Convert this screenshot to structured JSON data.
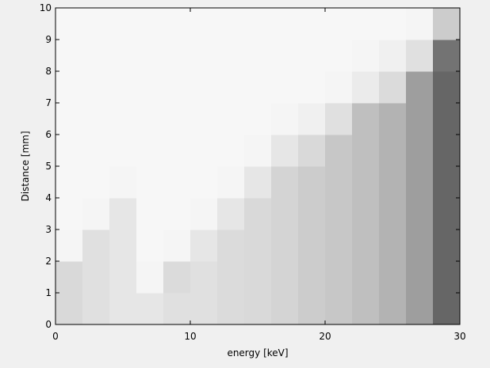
{
  "chart_data": {
    "type": "heatmap",
    "xlabel": "energy [keV]",
    "ylabel": "Distance [mm]",
    "xlim": [
      0,
      30
    ],
    "ylim": [
      0,
      10
    ],
    "xticks": [
      0,
      10,
      20,
      30
    ],
    "yticks": [
      0,
      1,
      2,
      3,
      4,
      5,
      6,
      7,
      8,
      9,
      10
    ],
    "xbins": [
      0,
      2,
      4,
      6,
      8,
      10,
      12,
      14,
      16,
      18,
      20,
      22,
      24,
      26,
      28,
      30
    ],
    "ybins": [
      0,
      1,
      2,
      3,
      4,
      5,
      6,
      7,
      8,
      9,
      10
    ],
    "clim": [
      0,
      1
    ],
    "colormap": "inverted-gray",
    "z": [
      [
        0.15,
        0.12,
        0.1,
        0.1,
        0.12,
        0.12,
        0.14,
        0.15,
        0.17,
        0.2,
        0.22,
        0.25,
        0.3,
        0.38,
        0.6
      ],
      [
        0.15,
        0.12,
        0.1,
        0.04,
        0.14,
        0.12,
        0.14,
        0.15,
        0.17,
        0.2,
        0.22,
        0.25,
        0.3,
        0.38,
        0.6
      ],
      [
        0.04,
        0.12,
        0.1,
        0.03,
        0.04,
        0.1,
        0.14,
        0.15,
        0.17,
        0.2,
        0.22,
        0.25,
        0.3,
        0.38,
        0.6
      ],
      [
        0.03,
        0.04,
        0.1,
        0.03,
        0.03,
        0.04,
        0.1,
        0.15,
        0.17,
        0.2,
        0.22,
        0.25,
        0.3,
        0.38,
        0.6
      ],
      [
        0.03,
        0.03,
        0.04,
        0.03,
        0.03,
        0.03,
        0.04,
        0.1,
        0.17,
        0.2,
        0.22,
        0.25,
        0.3,
        0.38,
        0.6
      ],
      [
        0.03,
        0.03,
        0.03,
        0.03,
        0.03,
        0.03,
        0.03,
        0.04,
        0.1,
        0.15,
        0.22,
        0.25,
        0.3,
        0.38,
        0.6
      ],
      [
        0.03,
        0.03,
        0.03,
        0.03,
        0.03,
        0.03,
        0.03,
        0.03,
        0.04,
        0.06,
        0.12,
        0.25,
        0.3,
        0.38,
        0.6
      ],
      [
        0.03,
        0.03,
        0.03,
        0.03,
        0.03,
        0.03,
        0.03,
        0.03,
        0.03,
        0.03,
        0.04,
        0.08,
        0.14,
        0.38,
        0.6
      ],
      [
        0.03,
        0.03,
        0.03,
        0.03,
        0.03,
        0.03,
        0.03,
        0.03,
        0.03,
        0.03,
        0.03,
        0.04,
        0.06,
        0.12,
        0.55
      ],
      [
        0.03,
        0.03,
        0.03,
        0.03,
        0.03,
        0.03,
        0.03,
        0.03,
        0.03,
        0.03,
        0.03,
        0.03,
        0.03,
        0.04,
        0.2
      ]
    ]
  }
}
